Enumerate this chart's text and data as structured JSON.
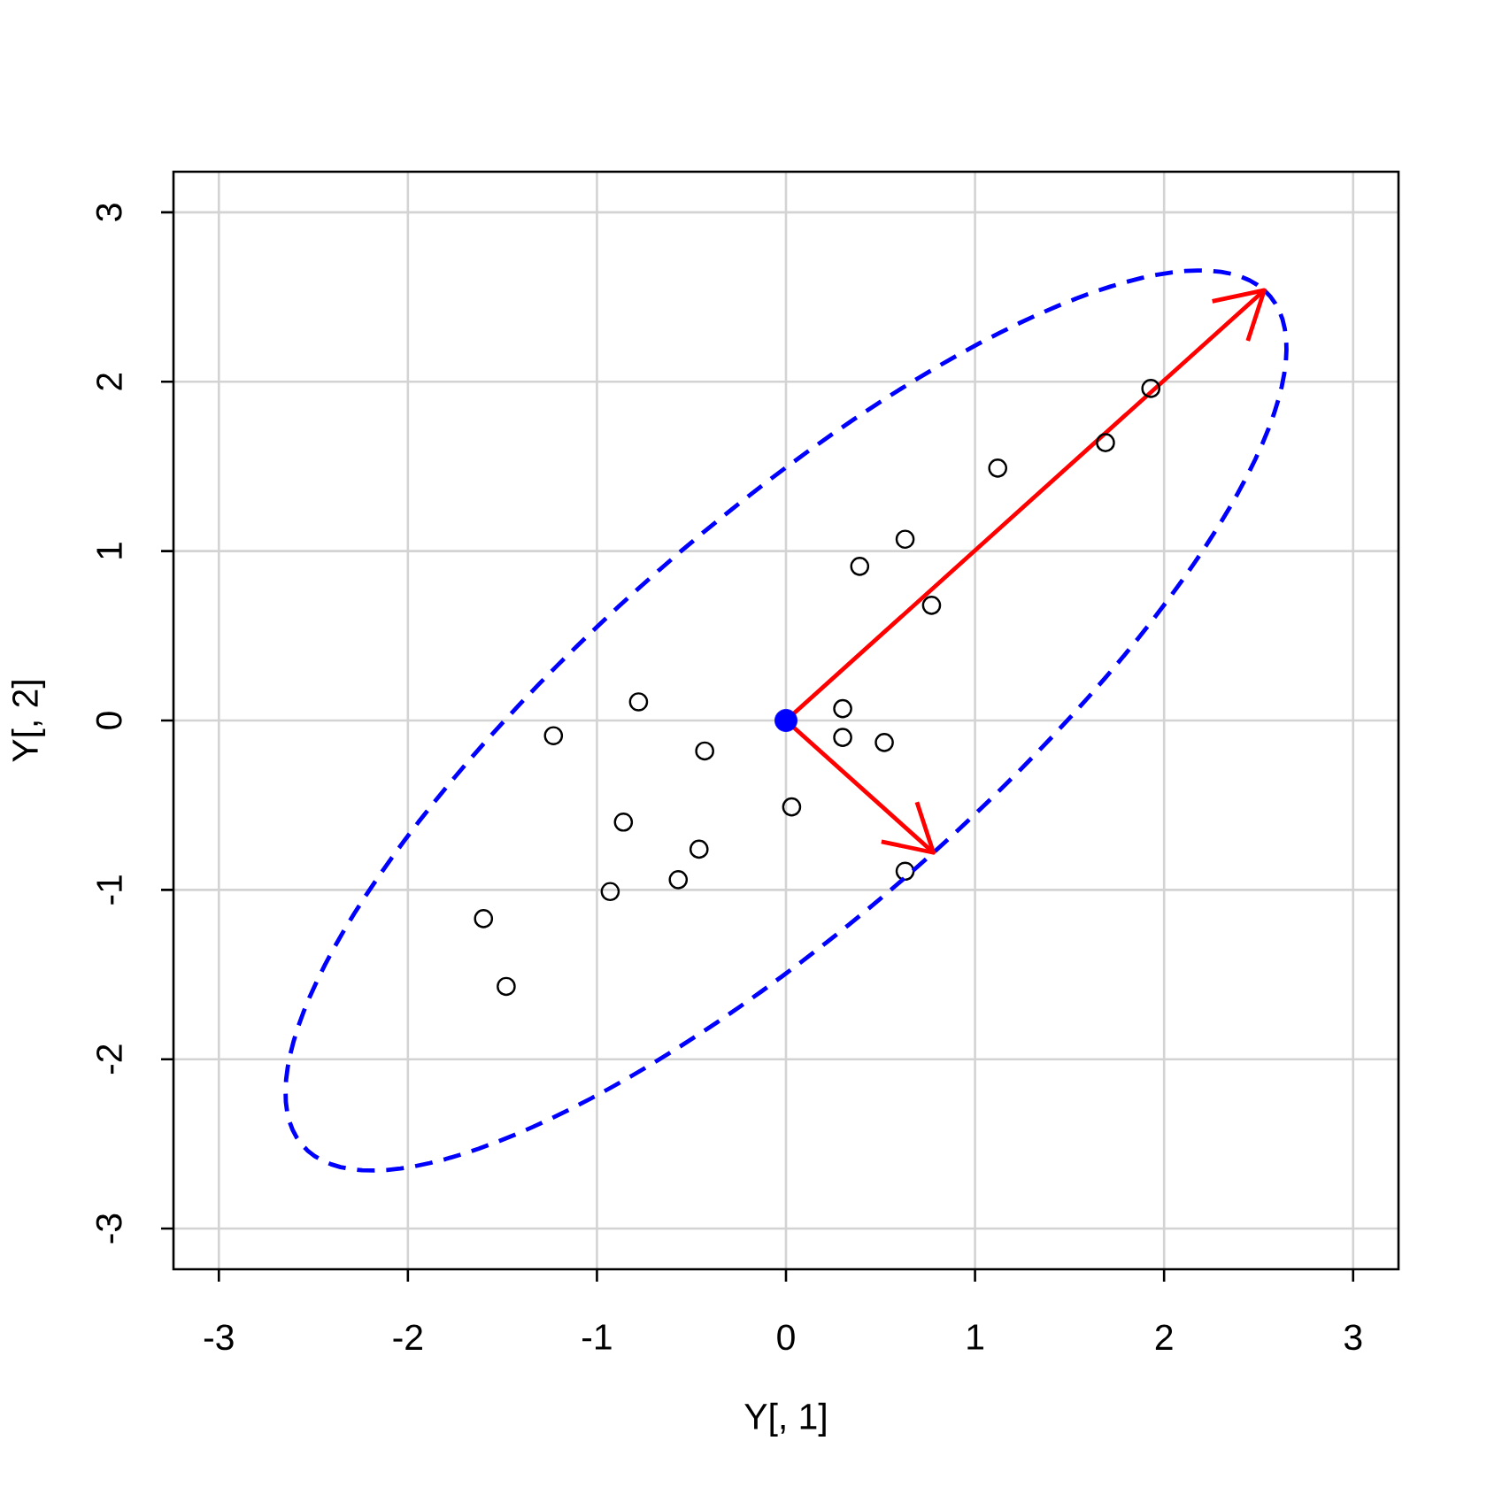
{
  "chart_data": {
    "type": "scatter",
    "xlabel": "Y[, 1]",
    "ylabel": "Y[, 2]",
    "xlim": [
      -3.24,
      3.24
    ],
    "ylim": [
      -3.24,
      3.24
    ],
    "xticks": [
      -3,
      -2,
      -1,
      0,
      1,
      2,
      3
    ],
    "yticks": [
      -3,
      -2,
      -1,
      0,
      1,
      2,
      3
    ],
    "grid": true,
    "series": [
      {
        "color": "#000000",
        "marker": "circle",
        "x": [
          -1.23,
          -0.78,
          -0.43,
          0.3,
          0.3,
          0.52,
          0.03,
          -0.86,
          -0.46,
          -0.57,
          -0.93,
          0.63,
          -1.6,
          -1.48,
          0.39,
          0.63,
          0.77,
          1.12,
          1.69,
          1.93
        ],
        "values": [
          -0.09,
          0.11,
          -0.18,
          0.07,
          -0.1,
          -0.13,
          -0.51,
          -0.6,
          -0.76,
          -0.94,
          -1.01,
          -0.89,
          -1.17,
          -1.57,
          0.91,
          1.07,
          0.68,
          1.49,
          1.64,
          1.96
        ]
      },
      {
        "type": "line",
        "color": "#ff0000",
        "marker": "none",
        "x": [
          0,
          2.53
        ],
        "values": [
          0,
          2.54
        ]
      },
      {
        "type": "line",
        "color": "#ff0000",
        "marker": "none",
        "x": [
          0,
          0.78
        ],
        "values": [
          0,
          -0.78
        ]
      },
      {
        "color": "#0000ff",
        "marker": "circle",
        "x": [
          0
        ],
        "values": [
          0
        ]
      }
    ]
  }
}
